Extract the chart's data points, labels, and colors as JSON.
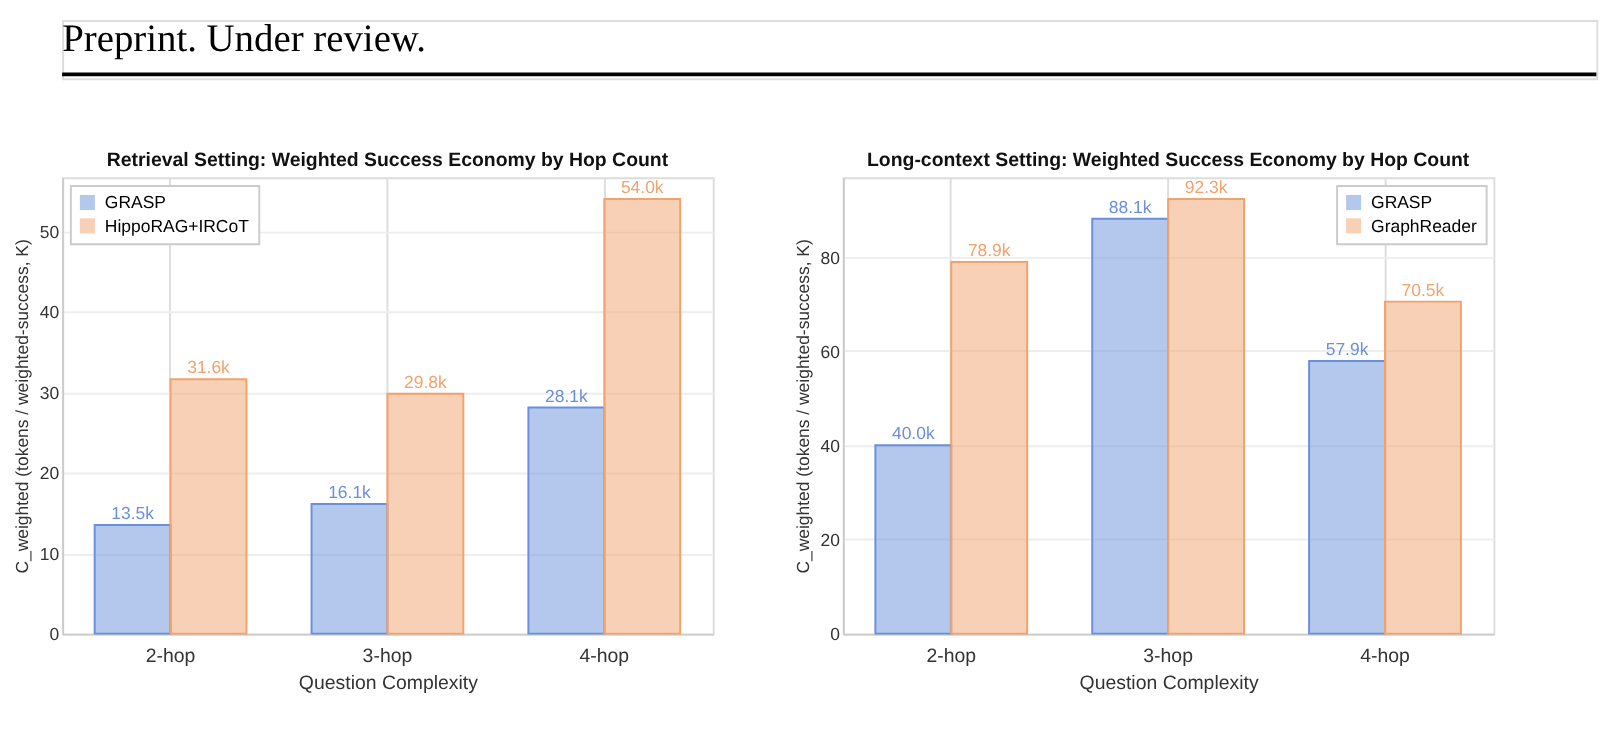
{
  "chart_data": [
    {
      "type": "bar",
      "title": "Retrieval Setting: Weighted Success Economy by Hop Count",
      "xlabel": "Question Complexity",
      "ylabel": "C_weighted (tokens / weighted-success, K)",
      "annotations": [
        "Preprint. Under review."
      ],
      "categories": [
        "2-hop",
        "3-hop",
        "4-hop"
      ],
      "series": [
        {
          "name": "GRASP",
          "color": "#6a8fdb",
          "values": [
            13.5,
            16.1,
            28.1
          ],
          "value_labels": [
            "13.5k",
            "16.1k",
            "28.1k"
          ]
        },
        {
          "name": "HippoRAG+IRCoT",
          "color": "#f2a26c",
          "values": [
            31.6,
            29.8,
            54.0
          ],
          "value_labels": [
            "31.6k",
            "29.8k",
            "54.0k"
          ]
        }
      ],
      "ylim": [
        0,
        56.7
      ],
      "yticks": [
        0,
        10,
        20,
        30,
        40,
        50
      ],
      "grid": true,
      "legend": "top left"
    },
    {
      "type": "bar",
      "title": "Long-context Setting: Weighted Success Economy by Hop Count",
      "xlabel": "Question Complexity",
      "ylabel": "C_weighted (tokens / weighted-success, K)",
      "categories": [
        "2-hop",
        "3-hop",
        "4-hop"
      ],
      "series": [
        {
          "name": "GRASP",
          "color": "#6a8fdb",
          "values": [
            40.0,
            88.1,
            57.9
          ],
          "value_labels": [
            "40.0k",
            "88.1k",
            "57.9k"
          ]
        },
        {
          "name": "GraphReader",
          "color": "#f2a26c",
          "values": [
            78.9,
            92.3,
            70.5
          ],
          "value_labels": [
            "78.9k",
            "92.3k",
            "70.5k"
          ]
        }
      ],
      "ylim": [
        0,
        96.9
      ],
      "yticks": [
        0,
        20,
        40,
        60,
        80
      ],
      "grid": true,
      "legend": "top right"
    }
  ]
}
